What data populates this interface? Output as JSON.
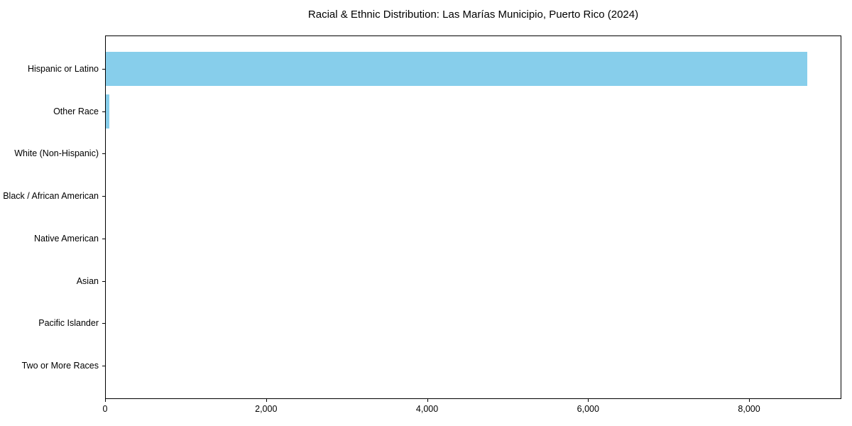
{
  "chart_data": {
    "type": "bar",
    "orientation": "horizontal",
    "title": "Racial & Ethnic Distribution: Las Marías Municipio, Puerto Rico (2024)",
    "categories": [
      "Hispanic or Latino",
      "Other Race",
      "White (Non-Hispanic)",
      "Black / African American",
      "Native American",
      "Asian",
      "Pacific Islander",
      "Two or More Races"
    ],
    "values": [
      8710,
      45,
      0,
      0,
      0,
      0,
      0,
      0
    ],
    "xlabel": "",
    "ylabel": "",
    "xlim": [
      0,
      9146
    ],
    "xticks": [
      0,
      2000,
      4000,
      6000,
      8000
    ],
    "xtick_labels": [
      "0",
      "2,000",
      "4,000",
      "6,000",
      "8,000"
    ],
    "bar_color": "#87CEEB",
    "text_color": "#000000",
    "grid": false,
    "legend": null,
    "background_color": "#ffffff"
  }
}
